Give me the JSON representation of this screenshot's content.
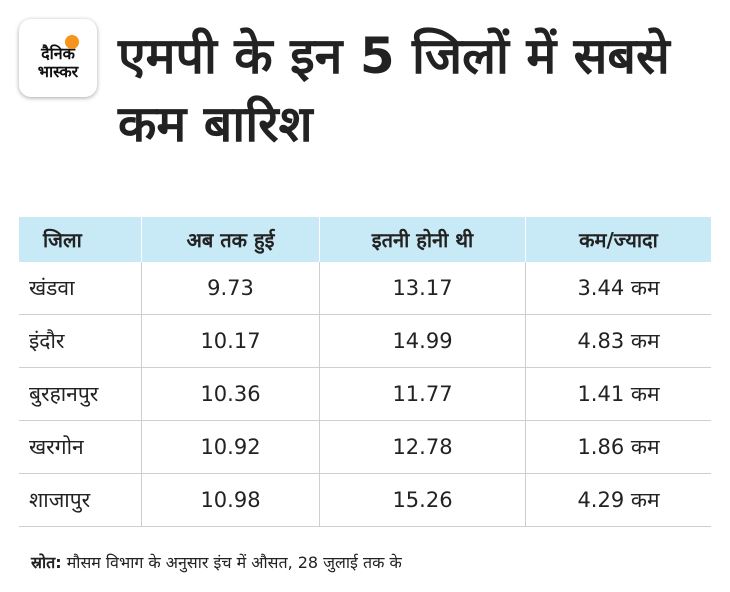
{
  "brand": {
    "line1": "दैनिक",
    "line2": "भास्कर",
    "accent": "#f7941d"
  },
  "title": "एमपी के इन 5 जिलों में सबसे कम बारिश",
  "colors": {
    "header_bg": "#c8e9f6"
  },
  "chart_data": {
    "type": "table",
    "columns": [
      "जिला",
      "अब तक हुई",
      "इतनी होनी थी",
      "कम/ज्यादा"
    ],
    "rows": [
      [
        "खंडवा",
        "9.73",
        "13.17",
        "3.44 कम"
      ],
      [
        "इंदौर",
        "10.17",
        "14.99",
        "4.83 कम"
      ],
      [
        "बुरहानपुर",
        "10.36",
        "11.77",
        "1.41 कम"
      ],
      [
        "खरगोन",
        "10.92",
        "12.78",
        "1.86 कम"
      ],
      [
        "शाजापुर",
        "10.98",
        "15.26",
        "4.29 कम"
      ]
    ]
  },
  "footnote": {
    "label": "स्रोत:",
    "text": " मौसम विभाग के अनुसार इंच में औसत, 28 जुलाई तक के"
  }
}
